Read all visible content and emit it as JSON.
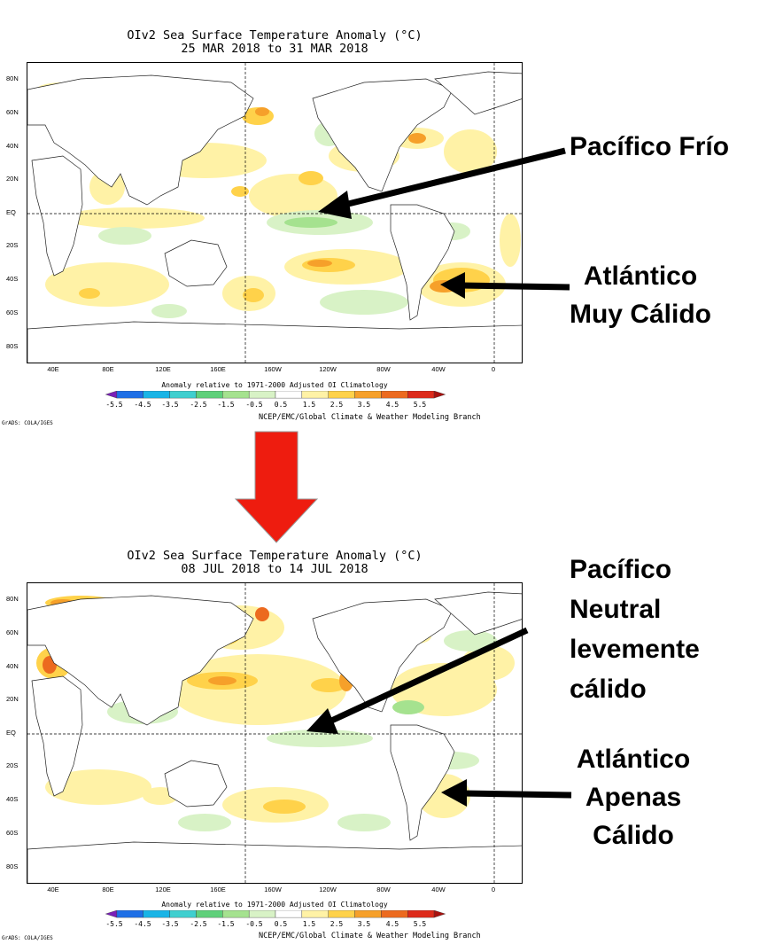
{
  "panels": [
    {
      "title_line1": "OIv2 Sea Surface Temperature Anomaly (°C)",
      "title_line2": "25 MAR 2018 to 31 MAR 2018",
      "annotations": [
        {
          "lines": [
            "Pacífico Frío"
          ]
        },
        {
          "lines": [
            "Atlántico",
            "Muy Cálido"
          ]
        }
      ]
    },
    {
      "title_line1": "OIv2 Sea Surface Temperature Anomaly (°C)",
      "title_line2": "08 JUL 2018 to 14 JUL 2018",
      "annotations": [
        {
          "lines": [
            "Pacífico",
            "Neutral",
            "levemente",
            "cálido"
          ]
        },
        {
          "lines": [
            "Atlántico",
            "Apenas",
            "Cálido"
          ]
        }
      ]
    }
  ],
  "lat_ticks": [
    "80N",
    "60N",
    "40N",
    "20N",
    "EQ",
    "20S",
    "40S",
    "60S",
    "80S"
  ],
  "lon_ticks": [
    "40E",
    "80E",
    "120E",
    "160E",
    "160W",
    "120W",
    "80W",
    "40W",
    "0"
  ],
  "colorbar": {
    "note": "Anomaly relative to 1971-2000 Adjusted OI Climatology",
    "labels": [
      "-5.5",
      "-4.5",
      "-3.5",
      "-2.5",
      "-1.5",
      "-0.5",
      "0.5",
      "1.5",
      "2.5",
      "3.5",
      "4.5",
      "5.5"
    ],
    "colors": [
      "#7a1fb8",
      "#1e6fe6",
      "#19b4e6",
      "#3fcfcf",
      "#5fd07a",
      "#a5e28f",
      "#d8f2c6",
      "#ffffff",
      "#fff2a6",
      "#ffd24a",
      "#f6a02a",
      "#ec6a1f",
      "#dd2a1a",
      "#a8110f"
    ]
  },
  "credit_main": "NCEP/EMC/Global Climate & Weather Modeling Branch",
  "credit_grads": "GrADS: COLA/IGES",
  "colors": {
    "arrow_red": "#ee1c0f",
    "land": "#ffffff",
    "warm_light": "#fff2a6",
    "warm_mid": "#ffd24a",
    "warm_strong": "#f6a02a",
    "cool_light": "#d8f2c6",
    "cool_mid": "#a5e28f"
  }
}
